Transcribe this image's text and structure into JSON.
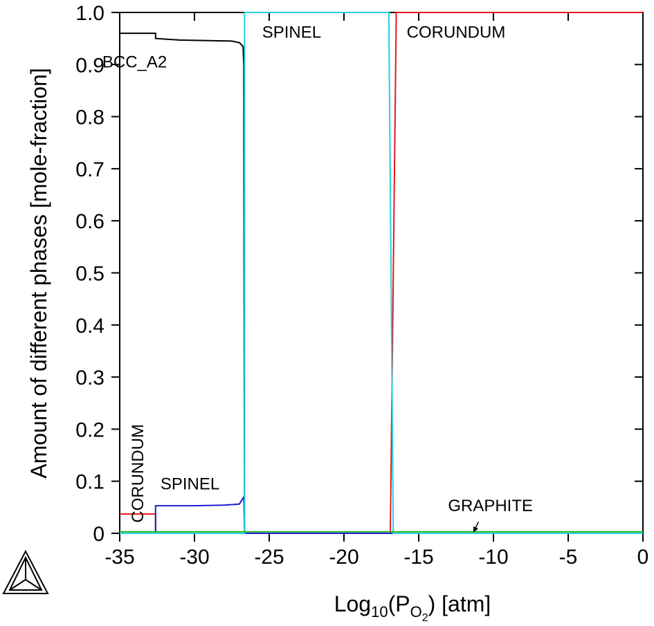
{
  "chart_data": {
    "type": "line",
    "xlabel": {
      "base": "Log",
      "sub": "10",
      "mid": "(P",
      "sub2": "O",
      "sub3": "2",
      "tail": ") [atm]"
    },
    "ylabel": "Amount of different phases [mole-fraction]",
    "xlim": [
      -35,
      0
    ],
    "ylim": [
      0,
      1.0
    ],
    "x_ticks": [
      -35,
      -30,
      -25,
      -20,
      -15,
      -10,
      -5,
      0
    ],
    "x_tick_labels": [
      "-35",
      "-30",
      "-25",
      "-20",
      "-15",
      "-10",
      "-5",
      "0"
    ],
    "y_ticks": [
      0,
      0.1,
      0.2,
      0.3,
      0.4,
      0.5,
      0.6,
      0.7,
      0.8,
      0.9,
      1.0
    ],
    "y_tick_labels": [
      "0",
      "0.1",
      "0.2",
      "0.3",
      "0.4",
      "0.5",
      "0.6",
      "0.7",
      "0.8",
      "0.9",
      "1.0"
    ],
    "series": [
      {
        "name": "BCC_A2",
        "color": "#000000",
        "points": [
          [
            -35,
            0.96
          ],
          [
            -32.6,
            0.96
          ],
          [
            -32.6,
            0.95
          ],
          [
            -31,
            0.947
          ],
          [
            -29,
            0.946
          ],
          [
            -27.5,
            0.945
          ],
          [
            -27,
            0.942
          ],
          [
            -26.75,
            0.935
          ],
          [
            -26.7,
            0.9
          ],
          [
            -26.68,
            0.48
          ],
          [
            -26.65,
            0.0
          ],
          [
            0,
            0.0
          ]
        ]
      },
      {
        "name": "CORUNDUM",
        "color": "#e8141c",
        "points": [
          [
            -35,
            0.037
          ],
          [
            -32.6,
            0.037
          ],
          [
            -32.6,
            0.0
          ],
          [
            -16.9,
            0.0
          ],
          [
            -16.5,
            1.0
          ],
          [
            0,
            1.0
          ]
        ]
      },
      {
        "name": "SPINEL",
        "color": "#1c1cd2",
        "points": [
          [
            -35,
            0.0
          ],
          [
            -32.6,
            0.0
          ],
          [
            -32.6,
            0.053
          ],
          [
            -30,
            0.053
          ],
          [
            -28,
            0.054
          ],
          [
            -27,
            0.056
          ],
          [
            -26.7,
            0.07
          ],
          [
            -26.65,
            0.0
          ],
          [
            0,
            0.0
          ]
        ]
      },
      {
        "name": "SPINEL",
        "color": "#22d0e0",
        "points": [
          [
            -35,
            0.0
          ],
          [
            -26.65,
            0.0
          ],
          [
            -26.65,
            1.0
          ],
          [
            -17.0,
            1.0
          ],
          [
            -16.7,
            0.0
          ],
          [
            0,
            0.0
          ]
        ]
      },
      {
        "name": "GRAPHITE",
        "color": "#22b422",
        "points": [
          [
            -35,
            0.003
          ],
          [
            0,
            0.003
          ]
        ]
      }
    ],
    "annotations": [
      {
        "text": "BCC_A2",
        "x": -34.0,
        "y": 0.905
      },
      {
        "text": "SPINEL",
        "x": -23.5,
        "y": 0.962
      },
      {
        "text": "CORUNDUM",
        "x": -12.5,
        "y": 0.962
      },
      {
        "text": "SPINEL",
        "x": -30.3,
        "y": 0.095
      },
      {
        "text": "GRAPHITE",
        "x": -10.2,
        "y": 0.053
      },
      {
        "text": "CORUNDUM",
        "x": -33.8,
        "y": 0.115,
        "rotated": true
      }
    ],
    "graphite_arrow": {
      "from": [
        -11.0,
        0.022
      ],
      "to": [
        -11.3,
        0.004
      ]
    }
  }
}
